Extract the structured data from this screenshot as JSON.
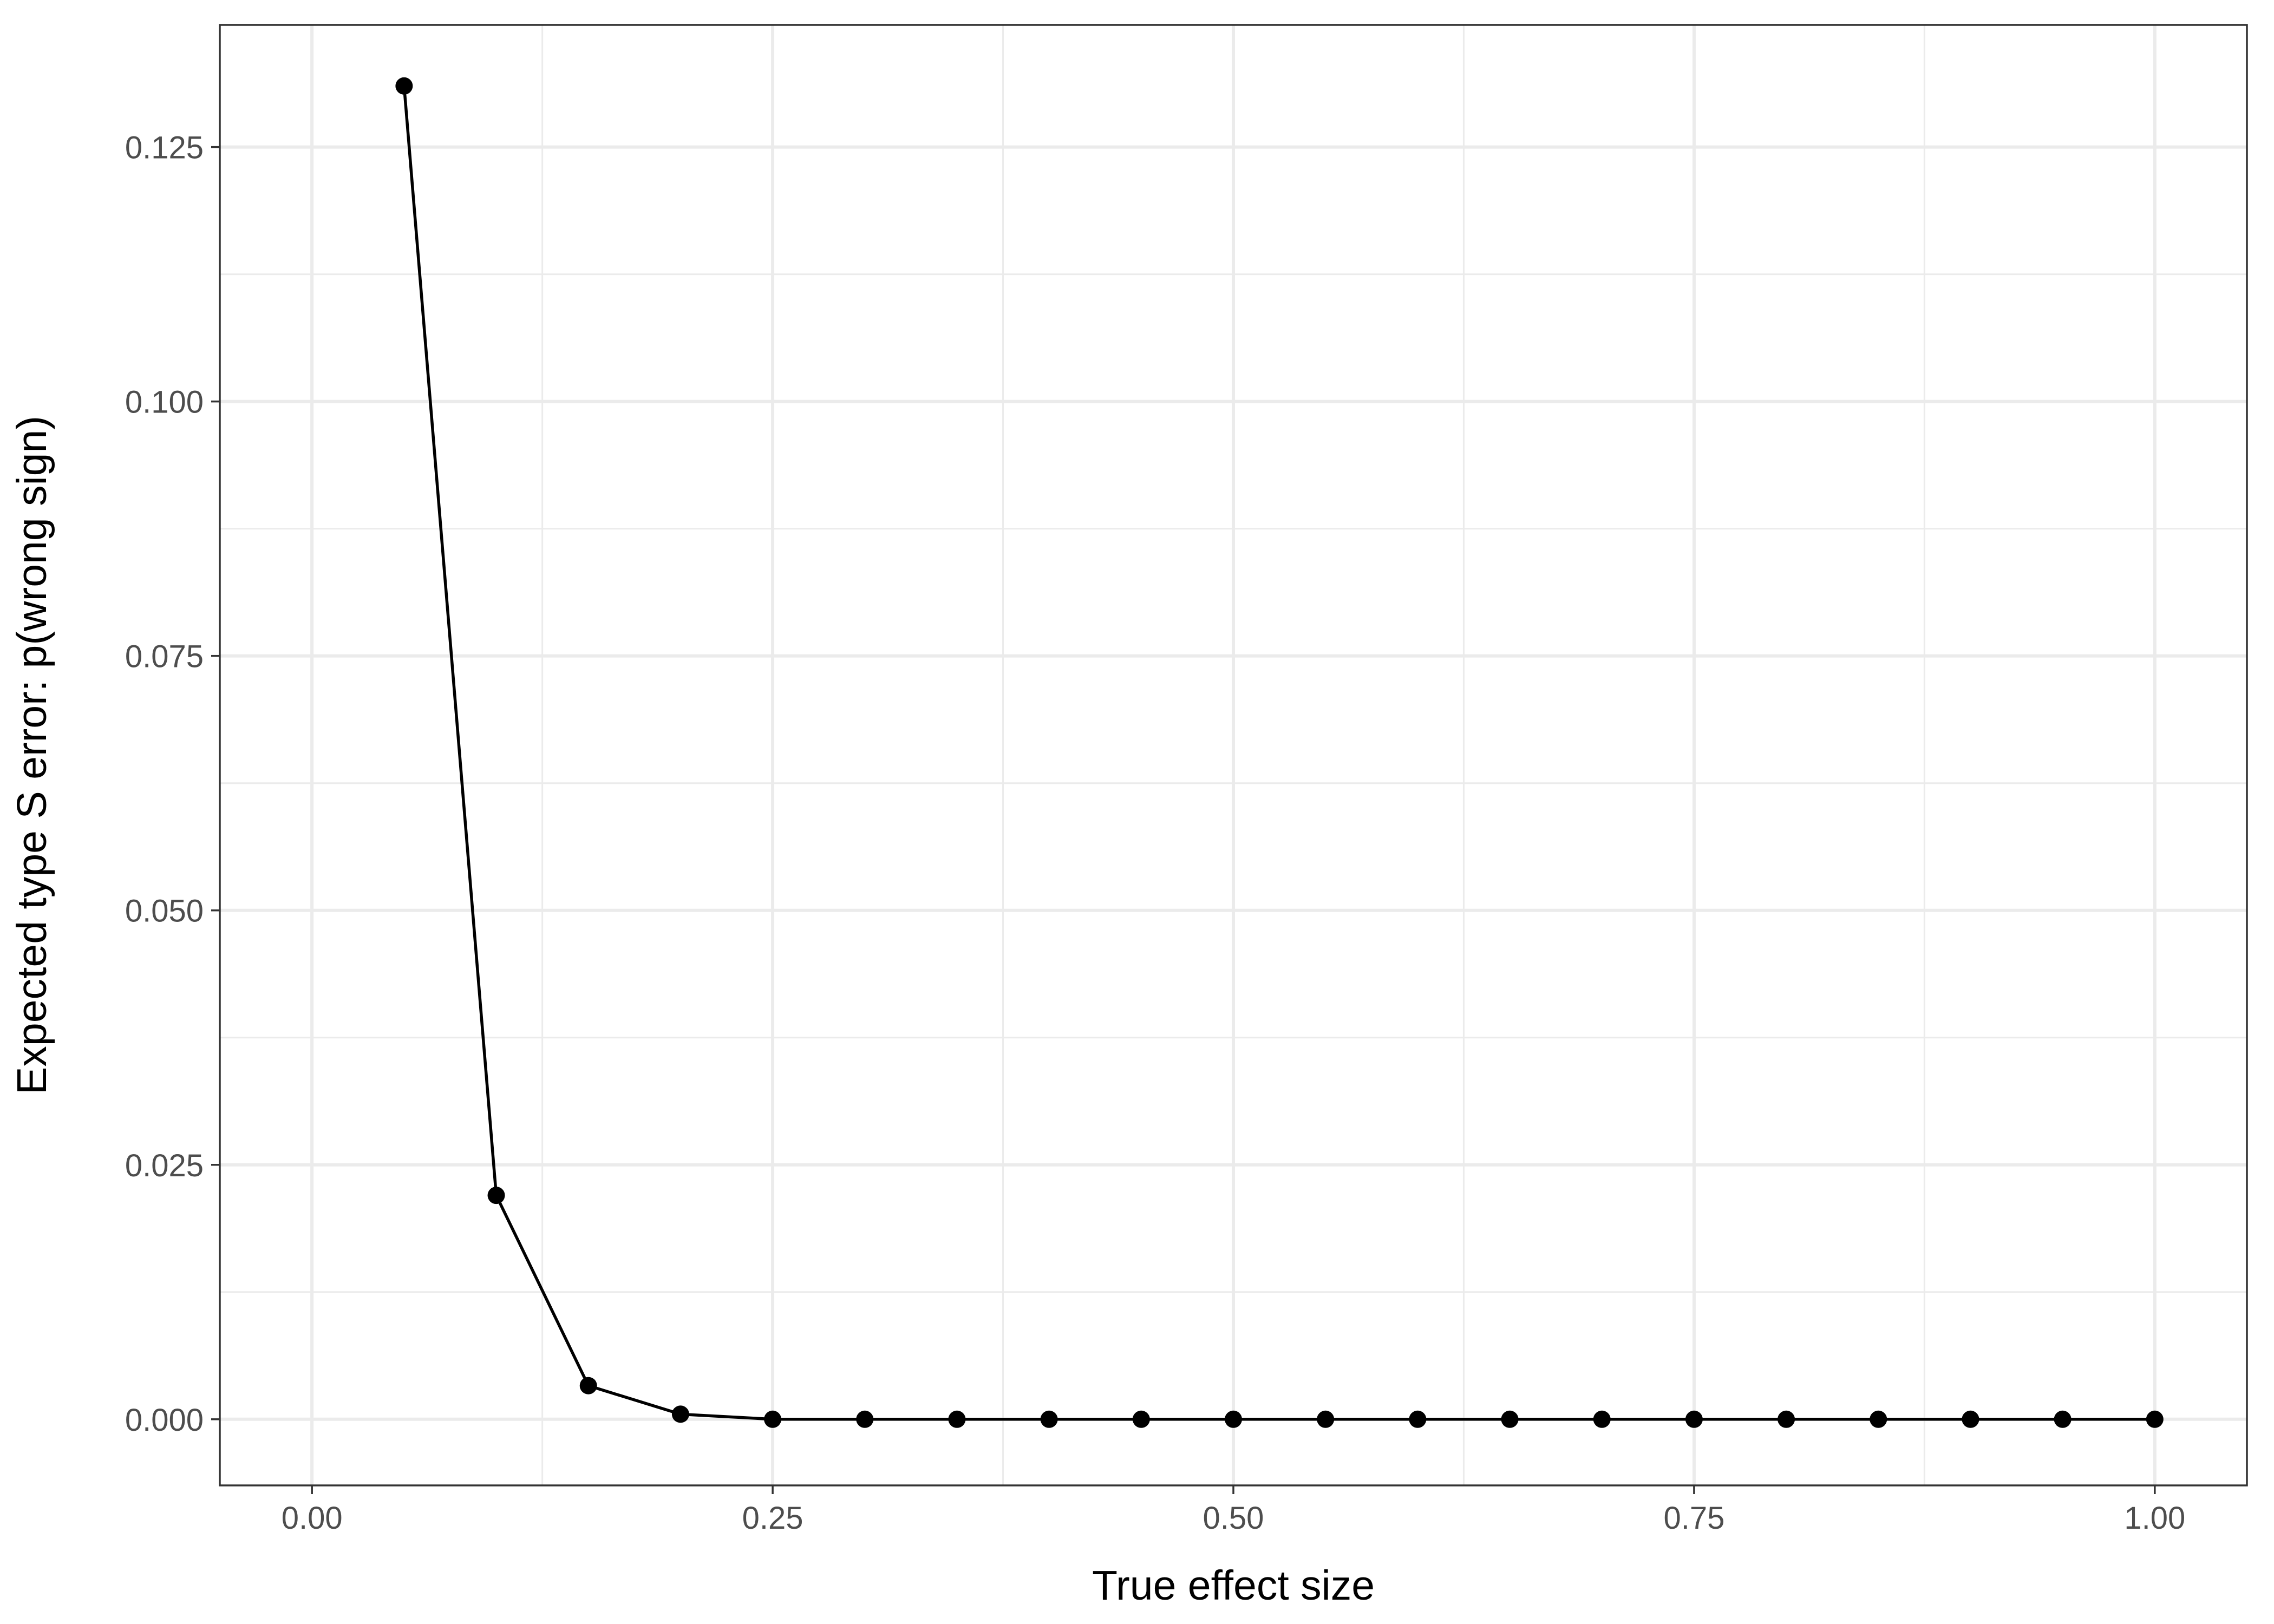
{
  "chart_data": {
    "type": "line",
    "title": "",
    "xlabel": "True effect size",
    "ylabel": "Expected type S error: p(wrong sign)",
    "xlim": [
      -0.05,
      1.05
    ],
    "ylim": [
      -0.0065,
      0.137
    ],
    "x_ticks": [
      0.0,
      0.25,
      0.5,
      0.75,
      1.0
    ],
    "x_tick_labels": [
      "0.00",
      "0.25",
      "0.50",
      "0.75",
      "1.00"
    ],
    "x_minor_ticks": [
      0.125,
      0.375,
      0.625,
      0.875
    ],
    "y_ticks": [
      0.0,
      0.025,
      0.05,
      0.075,
      0.1,
      0.125
    ],
    "y_tick_labels": [
      "0.000",
      "0.025",
      "0.050",
      "0.075",
      "0.100",
      "0.125"
    ],
    "y_minor_ticks": [
      0.0125,
      0.0375,
      0.0625,
      0.0875,
      0.1125
    ],
    "grid": true,
    "legend": "none",
    "colors": {
      "series": "#000000",
      "grid": "#ebebeb",
      "border": "#333333",
      "tick_text": "#4d4d4d"
    },
    "series": [
      {
        "x": [
          0.05,
          0.1,
          0.15,
          0.2,
          0.25,
          0.3,
          0.35,
          0.4,
          0.45,
          0.5,
          0.55,
          0.6,
          0.65,
          0.7,
          0.75,
          0.8,
          0.85,
          0.9,
          0.95,
          1.0
        ],
        "y": [
          0.131,
          0.022,
          0.0033,
          0.0005,
          0.0,
          0.0,
          0.0,
          0.0,
          0.0,
          0.0,
          0.0,
          0.0,
          0.0,
          0.0,
          0.0,
          0.0,
          0.0,
          0.0,
          0.0,
          0.0
        ]
      }
    ]
  }
}
